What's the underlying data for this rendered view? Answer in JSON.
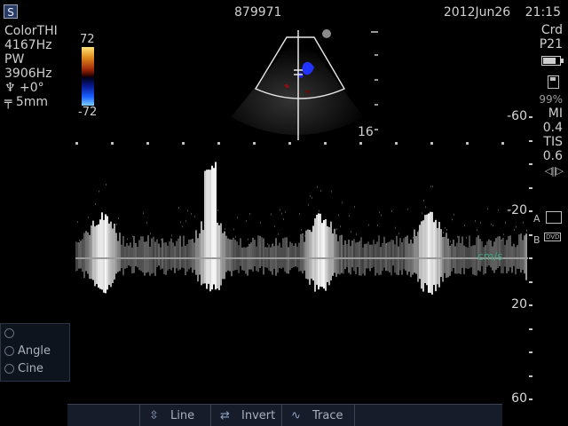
{
  "header": {
    "logo_icon": "probe-logo-icon",
    "patient_id": "879971",
    "date": "2012Jun26",
    "time": "21:15"
  },
  "left_params": {
    "lines": [
      "ColorTHI",
      "4167Hz",
      "PW",
      "3906Hz",
      "+0°",
      "5mm"
    ],
    "angle_icon": "angle-icon",
    "gate_icon": "gate-icon"
  },
  "color_bar": {
    "top_value": "72",
    "bottom_value": "-72"
  },
  "right_panel": {
    "preset": "Crd",
    "probe": "P21",
    "battery_icon": "battery-icon",
    "disk_icon": "disk-icon",
    "disk_percent": "99%",
    "mi_label": "MI",
    "mi_value": "0.4",
    "tis_label": "TIS",
    "tis_value": "0.6",
    "arrows_icon": "left-right-arrows-icon"
  },
  "print": {
    "a_label": "A",
    "b_label": "B",
    "printer_icon": "printer-icon",
    "dvd_label": "DVD"
  },
  "image": {
    "depth_label": "16"
  },
  "spectrum": {
    "units": "cm/s",
    "scale_labels": [
      "-60",
      "-20",
      "20",
      "60"
    ],
    "scale_values": [
      -60,
      -20,
      20,
      60
    ]
  },
  "control_panel": {
    "items": [
      {
        "label": "",
        "icon": "knob-icon"
      },
      {
        "label": "Angle",
        "icon": "knob-icon"
      },
      {
        "label": "Cine",
        "icon": "knob-icon"
      }
    ]
  },
  "toolbar": {
    "items": [
      {
        "label": "",
        "icon": ""
      },
      {
        "label": "Line",
        "icon": "line-icon"
      },
      {
        "label": "Invert",
        "icon": "invert-icon"
      },
      {
        "label": "Trace",
        "icon": "trace-icon"
      },
      {
        "label": "",
        "icon": ""
      }
    ]
  }
}
